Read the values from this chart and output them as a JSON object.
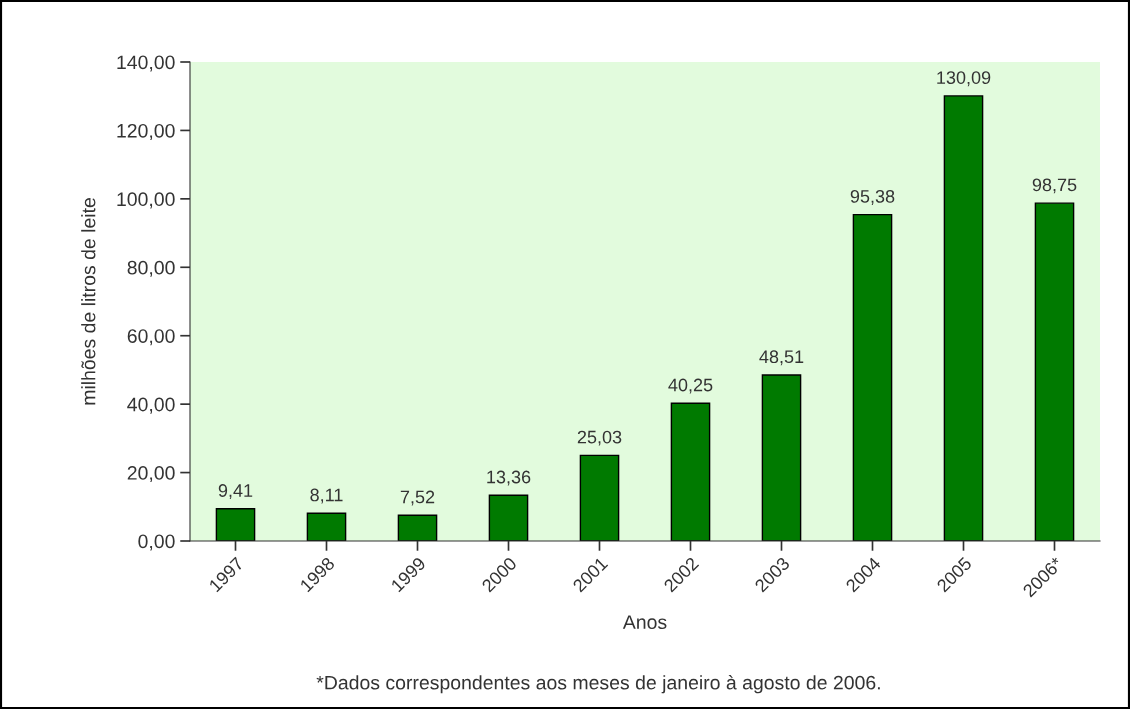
{
  "chart_data": {
    "type": "bar",
    "xlabel": "Anos",
    "ylabel": "milhões de litros de leite",
    "categories": [
      "1997",
      "1998",
      "1999",
      "2000",
      "2001",
      "2002",
      "2003",
      "2004",
      "2005",
      "2006*"
    ],
    "values": [
      9.41,
      8.11,
      7.52,
      13.36,
      25.03,
      40.25,
      48.51,
      95.38,
      130.09,
      98.75
    ],
    "value_labels": [
      "9,41",
      "8,11",
      "7,52",
      "13,36",
      "25,03",
      "40,25",
      "48,51",
      "95,38",
      "130,09",
      "98,75"
    ],
    "color": "#007a00",
    "ylim": [
      0,
      140
    ],
    "yticks": [
      {
        "value": 0,
        "label": "0,00"
      },
      {
        "value": 20,
        "label": "20,00"
      },
      {
        "value": 40,
        "label": "40,00"
      },
      {
        "value": 60,
        "label": "60,00"
      },
      {
        "value": 80,
        "label": "80,00"
      },
      {
        "value": 100,
        "label": "100,00"
      },
      {
        "value": 120,
        "label": "120,00"
      },
      {
        "value": 140,
        "label": "140,00"
      }
    ],
    "grid": false,
    "legend": false,
    "annotations": [
      "*Dados correspondentes aos meses de janeiro à agosto de 2006."
    ]
  }
}
